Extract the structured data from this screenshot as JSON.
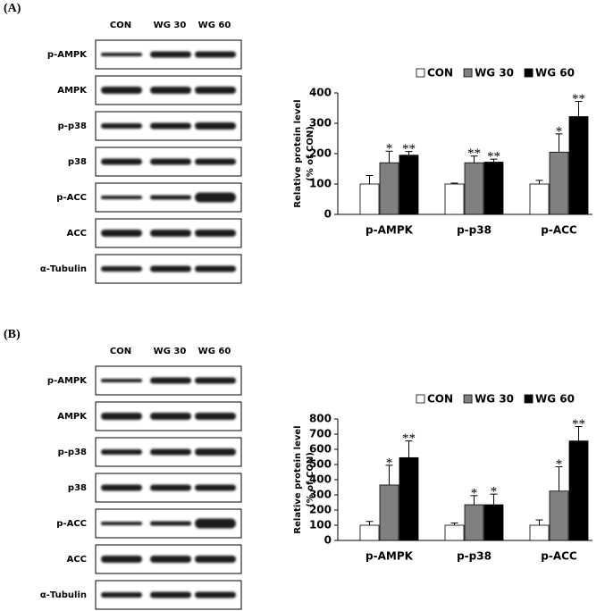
{
  "panels": [
    {
      "label": "(A)",
      "blot": {
        "columns": [
          "CON",
          "WG 30",
          "WG 60"
        ],
        "rows": [
          "p-AMPK",
          "AMPK",
          "p-p38",
          "p38",
          "p-ACC",
          "ACC",
          "α-Tubulin"
        ]
      }
    },
    {
      "label": "(B)",
      "blot": {
        "columns": [
          "CON",
          "WG 30",
          "WG 60"
        ],
        "rows": [
          "p-AMPK",
          "AMPK",
          "p-p38",
          "p38",
          "p-ACC",
          "ACC",
          "α-Tubulin"
        ]
      }
    }
  ],
  "chart_data": [
    {
      "type": "bar",
      "ylabel": [
        "Relative protein level",
        "(% of CON)"
      ],
      "categories": [
        "p-AMPK",
        "p-p38",
        "p-ACC"
      ],
      "series": [
        {
          "name": "CON",
          "color": "#ffffff",
          "values": [
            100,
            100,
            100
          ],
          "errors": [
            28,
            3,
            12
          ]
        },
        {
          "name": "WG 30",
          "color": "#808080",
          "values": [
            170,
            170,
            205
          ],
          "errors": [
            38,
            22,
            60
          ],
          "significance": [
            "*",
            "**",
            "*"
          ]
        },
        {
          "name": "WG 60",
          "color": "#000000",
          "values": [
            195,
            172,
            322
          ],
          "errors": [
            12,
            10,
            50
          ],
          "significance": [
            "**",
            "**",
            "**"
          ]
        }
      ],
      "ylim": [
        0,
        400
      ],
      "yticks": [
        0,
        100,
        200,
        300,
        400
      ],
      "legend": "top"
    },
    {
      "type": "bar",
      "ylabel": [
        "Relative protein level",
        "(% of CON)"
      ],
      "categories": [
        "p-AMPK",
        "p-p38",
        "p-ACC"
      ],
      "series": [
        {
          "name": "CON",
          "color": "#ffffff",
          "values": [
            100,
            100,
            100
          ],
          "errors": [
            25,
            15,
            35
          ]
        },
        {
          "name": "WG 30",
          "color": "#808080",
          "values": [
            365,
            235,
            325
          ],
          "errors": [
            130,
            60,
            160
          ],
          "significance": [
            "*",
            "*",
            "*"
          ]
        },
        {
          "name": "WG 60",
          "color": "#000000",
          "values": [
            545,
            235,
            655
          ],
          "errors": [
            110,
            70,
            95
          ],
          "significance": [
            "**",
            "*",
            "**"
          ]
        }
      ],
      "ylim": [
        0,
        800
      ],
      "yticks": [
        0,
        100,
        200,
        300,
        400,
        500,
        600,
        700,
        800
      ],
      "legend": "top"
    }
  ]
}
